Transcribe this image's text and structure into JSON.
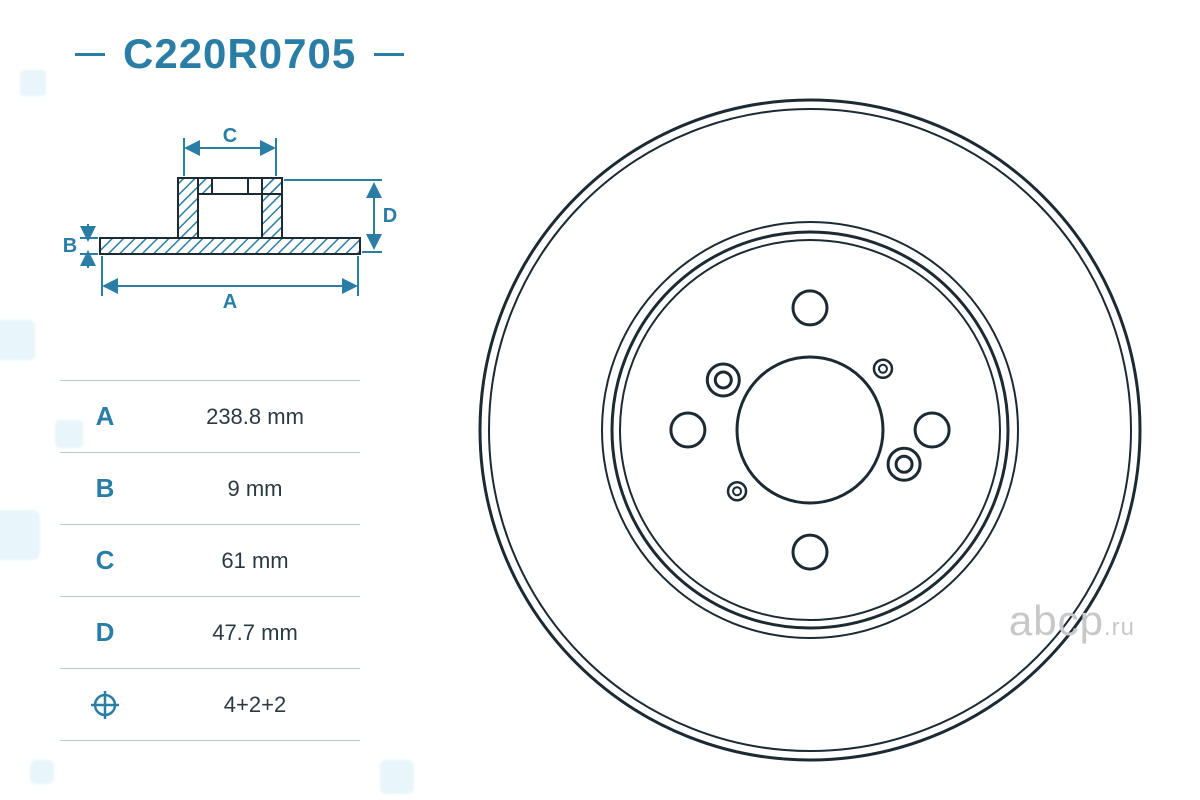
{
  "colors": {
    "accent": "#2a7ea6",
    "line": "#1b2a33",
    "background": "#ffffff",
    "table_border": "#b8c8d0",
    "table_text": "#2b3a42",
    "hatch": "#2a7ea6",
    "watermark": "#c8c8c8",
    "bg_blob": "#bfe3f4"
  },
  "title": "C220R0705",
  "cross_section": {
    "dimension_labels": {
      "A": "A",
      "B": "B",
      "C": "C",
      "D": "D"
    }
  },
  "specs": [
    {
      "key": "A",
      "value": "238.8 mm"
    },
    {
      "key": "B",
      "value": "9 mm"
    },
    {
      "key": "C",
      "value": "61 mm"
    },
    {
      "key": "D",
      "value": "47.7 mm"
    },
    {
      "key": "⊕",
      "value": "4+2+2"
    }
  ],
  "disc": {
    "type": "brake-disc-face",
    "outer_diameter_ratio": 1.0,
    "inner_ring_ratio": 0.58,
    "center_bore_ratio": 0.21,
    "bolt_circle_ratio": 0.37,
    "bolt_holes": 4,
    "aux_holes_small": 2,
    "aux_holes_large": 2,
    "stroke_color": "#1b2a33",
    "stroke_width": 2.5
  },
  "watermark": {
    "main": "abcp",
    "suffix": ".ru"
  }
}
